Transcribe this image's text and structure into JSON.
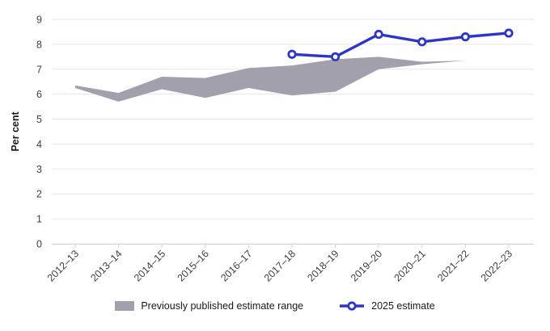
{
  "chart_data": {
    "type": "line",
    "subtype": "line-with-area-range-band",
    "title": "",
    "xlabel": "",
    "ylabel": "Per cent",
    "ylim": [
      0,
      9
    ],
    "y_ticks": [
      0,
      1,
      2,
      3,
      4,
      5,
      6,
      7,
      8,
      9
    ],
    "grid": "horizontal-on",
    "legend_position": "bottom-center",
    "categories": [
      "2012–13",
      "2013–14",
      "2014–15",
      "2015–16",
      "2016–17",
      "2017–18",
      "2018–19",
      "2019–20",
      "2020–21",
      "2021–22",
      "2022–23"
    ],
    "series": [
      {
        "name": "Previously published estimate range",
        "type": "arearange",
        "color": "#a2a0ad",
        "low": [
          6.25,
          5.7,
          6.2,
          5.85,
          6.25,
          5.95,
          6.1,
          7.0,
          7.2,
          7.35,
          null
        ],
        "high": [
          6.35,
          6.05,
          6.7,
          6.65,
          7.05,
          7.15,
          7.4,
          7.5,
          7.3,
          7.35,
          null
        ]
      },
      {
        "name": "2025 estimate",
        "type": "line",
        "color": "#2d36c8",
        "marker": "circle-open",
        "values": [
          null,
          null,
          null,
          null,
          null,
          7.6,
          7.5,
          8.4,
          8.1,
          8.3,
          8.45
        ]
      }
    ],
    "colors": {
      "gridline": "#e6e6e6",
      "axis_line": "#d4d4d4",
      "tick_label": "#404040",
      "marker_fill": "#ffffff"
    }
  }
}
